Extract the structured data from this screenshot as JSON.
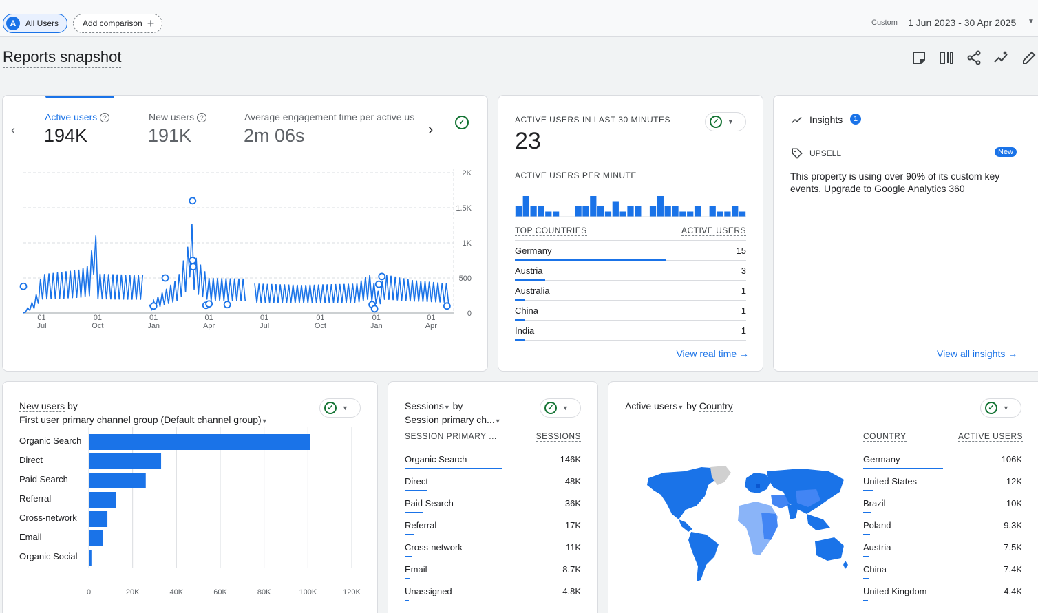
{
  "topbar": {
    "user_chip": {
      "avatar_letter": "A",
      "label": "All Users"
    },
    "add_comparison": "Add comparison",
    "date_label": "Custom",
    "date_range": "1 Jun 2023 - 30 Apr 2025"
  },
  "page": {
    "title": "Reports snapshot"
  },
  "toolbar_icons": [
    "notes-icon",
    "compare-icon",
    "share-icon",
    "insights-trend-icon",
    "edit-icon"
  ],
  "overview": {
    "metrics": [
      {
        "label": "Active users",
        "value": "194K"
      },
      {
        "label": "New users",
        "value": "191K"
      },
      {
        "label": "Average engagement time per active us",
        "value": "2m 06s"
      }
    ],
    "chart_data": {
      "type": "line",
      "series_color": "#1a73e8",
      "y_ticks": [
        "0",
        "500",
        "1K",
        "1.5K",
        "2K"
      ],
      "ylim": [
        0,
        2000
      ],
      "x_ticks": [
        {
          "day": "01",
          "month": "Jul"
        },
        {
          "day": "01",
          "month": "Oct"
        },
        {
          "day": "01",
          "month": "Jan"
        },
        {
          "day": "01",
          "month": "Apr"
        },
        {
          "day": "01",
          "month": "Jul"
        },
        {
          "day": "01",
          "month": "Oct"
        },
        {
          "day": "01",
          "month": "Jan"
        },
        {
          "day": "01",
          "month": "Apr"
        }
      ],
      "segments": [
        {
          "x": [
            "2023-06-01",
            "2023-06-20",
            "2023-07-01",
            "2023-09-01",
            "2023-09-20",
            "2023-09-25",
            "2023-10-01",
            "2023-12-15"
          ],
          "y": [
            0,
            200,
            550,
            620,
            700,
            1650,
            560,
            540
          ]
        },
        {
          "x": [
            "2023-12-25",
            "2024-02-10",
            "2024-02-28",
            "2024-03-01",
            "2024-03-06",
            "2024-03-10",
            "2024-04-01",
            "2024-06-01"
          ],
          "y": [
            120,
            500,
            1000,
            1600,
            1050,
            800,
            500,
            490
          ]
        },
        {
          "x": [
            "2024-06-15",
            "2024-09-01",
            "2024-12-01",
            "2024-12-20",
            "2025-01-05",
            "2025-01-15",
            "2025-03-01",
            "2025-04-30"
          ],
          "y": [
            420,
            400,
            420,
            560,
            300,
            550,
            470,
            420
          ]
        }
      ],
      "markers": [
        {
          "x": "2023-06-01",
          "y": 380
        },
        {
          "x": "2024-01-01",
          "y": 100
        },
        {
          "x": "2024-01-20",
          "y": 500
        },
        {
          "x": "2024-03-05",
          "y": 1600
        },
        {
          "x": "2024-03-05",
          "y": 750
        },
        {
          "x": "2024-03-06",
          "y": 660
        },
        {
          "x": "2024-03-27",
          "y": 110
        },
        {
          "x": "2024-04-01",
          "y": 130
        },
        {
          "x": "2024-05-01",
          "y": 120
        },
        {
          "x": "2024-12-25",
          "y": 120
        },
        {
          "x": "2024-12-29",
          "y": 60
        },
        {
          "x": "2025-01-05",
          "y": 410
        },
        {
          "x": "2025-01-10",
          "y": 520
        },
        {
          "x": "2025-04-27",
          "y": 100
        }
      ]
    }
  },
  "realtime": {
    "title": "ACTIVE USERS IN LAST 30 MINUTES",
    "value": "23",
    "per_minute_label": "ACTIVE USERS PER MINUTE",
    "per_minute_chart": {
      "type": "bar",
      "values": [
        1,
        2,
        1,
        1,
        0.5,
        0.5,
        0,
        0,
        1,
        1,
        2,
        1,
        0.5,
        1.5,
        0.5,
        1,
        1,
        0,
        1,
        2,
        1,
        1,
        0.5,
        0.5,
        1,
        0,
        1,
        0.5,
        0.5,
        1,
        0.5
      ]
    },
    "columns": [
      "TOP COUNTRIES",
      "ACTIVE USERS"
    ],
    "rows": [
      {
        "country": "Germany",
        "value": "15",
        "share": 1.0
      },
      {
        "country": "Austria",
        "value": "3",
        "share": 0.2
      },
      {
        "country": "Australia",
        "value": "1",
        "share": 0.07
      },
      {
        "country": "China",
        "value": "1",
        "share": 0.07
      },
      {
        "country": "India",
        "value": "1",
        "share": 0.07
      }
    ],
    "link": "View real time"
  },
  "insights": {
    "title": "Insights",
    "badge": "1",
    "tag": "UPSELL",
    "new_badge": "New",
    "text": "This property is using over 90% of its custom key events. Upgrade to Google Analytics 360",
    "link": "View all insights"
  },
  "new_users_card": {
    "title_metric": "New users",
    "title_by": "by",
    "dimension": "First user primary channel group (Default channel group)",
    "chart_data": {
      "type": "bar",
      "orientation": "horizontal",
      "categories": [
        "Organic Search",
        "Direct",
        "Paid Search",
        "Referral",
        "Cross-network",
        "Email",
        "Organic Social"
      ],
      "values": [
        101000,
        33000,
        26000,
        12500,
        8500,
        6500,
        1200
      ],
      "xlim": [
        0,
        120000
      ],
      "x_ticks": [
        "0",
        "20K",
        "40K",
        "60K",
        "80K",
        "100K",
        "120K"
      ],
      "color": "#1a73e8"
    }
  },
  "sessions_card": {
    "title_metric": "Sessions",
    "title_by": "by",
    "dimension": "Session primary ch...",
    "columns": [
      "SESSION PRIMARY ...",
      "SESSIONS"
    ],
    "rows": [
      {
        "label": "Organic Search",
        "value": "146K",
        "share": 0.55
      },
      {
        "label": "Direct",
        "value": "48K",
        "share": 0.13
      },
      {
        "label": "Paid Search",
        "value": "36K",
        "share": 0.1
      },
      {
        "label": "Referral",
        "value": "17K",
        "share": 0.05
      },
      {
        "label": "Cross-network",
        "value": "11K",
        "share": 0.04
      },
      {
        "label": "Email",
        "value": "8.7K",
        "share": 0.03
      },
      {
        "label": "Unassigned",
        "value": "4.8K",
        "share": 0.02
      }
    ]
  },
  "country_card": {
    "title_metric": "Active users",
    "title_by": "by",
    "title_dimension": "Country",
    "columns": [
      "COUNTRY",
      "ACTIVE USERS"
    ],
    "rows": [
      {
        "label": "Germany",
        "value": "106K",
        "share": 0.5
      },
      {
        "label": "United States",
        "value": "12K",
        "share": 0.06
      },
      {
        "label": "Brazil",
        "value": "10K",
        "share": 0.05
      },
      {
        "label": "Poland",
        "value": "9.3K",
        "share": 0.045
      },
      {
        "label": "Austria",
        "value": "7.5K",
        "share": 0.04
      },
      {
        "label": "China",
        "value": "7.4K",
        "share": 0.04
      },
      {
        "label": "United Kingdom",
        "value": "4.4K",
        "share": 0.03
      }
    ]
  }
}
